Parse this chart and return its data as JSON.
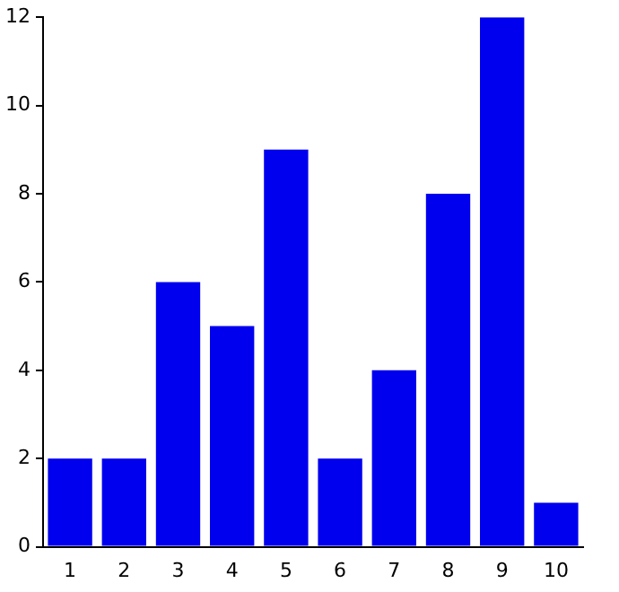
{
  "chart_data": {
    "type": "bar",
    "categories": [
      "1",
      "2",
      "3",
      "4",
      "5",
      "6",
      "7",
      "8",
      "9",
      "10"
    ],
    "values": [
      2,
      2,
      6,
      5,
      9,
      2,
      4,
      8,
      12,
      1
    ],
    "color": "#0000ee",
    "ylim": [
      0,
      12
    ],
    "yticks": [
      0,
      2,
      4,
      6,
      8,
      10,
      12
    ],
    "grid": false,
    "legend": false
  }
}
